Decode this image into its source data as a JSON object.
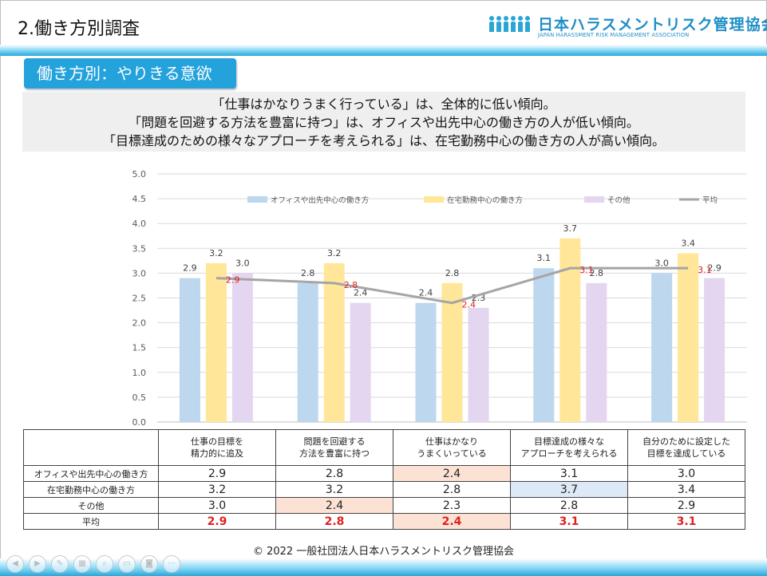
{
  "header": {
    "title": "2.働き方別調査",
    "logo_name": "日本ハラスメントリスク管理協会",
    "logo_sub": "JAPAN HARASSMENT RISK MANAGEMENT ASSOCIATION",
    "accent": "#24a2dc"
  },
  "section": {
    "label": "働き方別：やりきる意欲"
  },
  "summary": {
    "lines": [
      "「仕事はかなりうまく行っている」は、全体的に低い傾向。",
      "「問題を回避する方法を豊富に持つ」は、オフィスや出先中心の働き方の人が低い傾向。",
      "「目標達成のための様々なアプローチを考えられる」は、在宅勤務中心の働き方の人が高い傾向。"
    ]
  },
  "chart_data": {
    "type": "bar",
    "categories": [
      "仕事の目標を 精力的に追及",
      "問題を回避する 方法を豊富に持つ",
      "仕事はかなり うまくいっている",
      "目標達成の様々な アプローチを考えられる",
      "自分のために設定した 目標を達成している"
    ],
    "series": [
      {
        "name": "オフィスや出先中心の働き方",
        "values": [
          2.9,
          2.8,
          2.4,
          3.1,
          3.0
        ],
        "color": "#bdd7ee",
        "labels": [
          "2.9",
          "2.8",
          "2.4",
          "3.1",
          "3.0"
        ]
      },
      {
        "name": "在宅勤務中心の働き方",
        "values": [
          3.2,
          3.2,
          2.8,
          3.7,
          3.4
        ],
        "color": "#ffe699",
        "labels": [
          "3.2",
          "3.2",
          "2.8",
          "3.7",
          "3.4"
        ]
      },
      {
        "name": "その他",
        "values": [
          3.0,
          2.4,
          2.3,
          2.8,
          2.9
        ],
        "color": "#e4d6f0",
        "labels": [
          "3.0",
          "2.4",
          "2.3",
          "2.8",
          "2.9"
        ]
      }
    ],
    "line": {
      "name": "平均",
      "values": [
        2.9,
        2.8,
        2.4,
        3.1,
        3.1
      ],
      "color": "#a5a5a5",
      "label_color": "#e02020",
      "labels": [
        "2.9",
        "2.8",
        "2.4",
        "3.1",
        "3.1"
      ]
    },
    "y_ticks": [
      "0.0",
      "0.5",
      "1.0",
      "1.5",
      "2.0",
      "2.5",
      "3.0",
      "3.5",
      "4.0",
      "4.5",
      "5.0"
    ],
    "ylim": [
      0,
      5
    ],
    "grid": true,
    "legend": "top"
  },
  "table": {
    "headers": [
      [
        "仕事の目標を",
        "精力的に追及"
      ],
      [
        "問題を回避する",
        "方法を豊富に持つ"
      ],
      [
        "仕事はかなり",
        "うまくいっている"
      ],
      [
        "目標達成の様々な",
        "アプローチを考えられる"
      ],
      [
        "自分のために設定した",
        "目標を達成している"
      ]
    ],
    "rows": [
      {
        "label": "オフィスや出先中心の働き方",
        "values": [
          "2.9",
          "2.8",
          "2.4",
          "3.1",
          "3.0"
        ]
      },
      {
        "label": "在宅勤務中心の働き方",
        "values": [
          "3.2",
          "3.2",
          "2.8",
          "3.7",
          "3.4"
        ]
      },
      {
        "label": "その他",
        "values": [
          "3.0",
          "2.4",
          "2.3",
          "2.8",
          "2.9"
        ]
      },
      {
        "label": "平均",
        "values": [
          "2.9",
          "2.8",
          "2.4",
          "3.1",
          "3.1"
        ]
      }
    ],
    "highlight_orange": "#fbe2d5",
    "highlight_blue": "#dde9f7"
  },
  "footer": {
    "copyright": "© 2022  一般社団法人日本ハラスメントリスク管理協会"
  }
}
